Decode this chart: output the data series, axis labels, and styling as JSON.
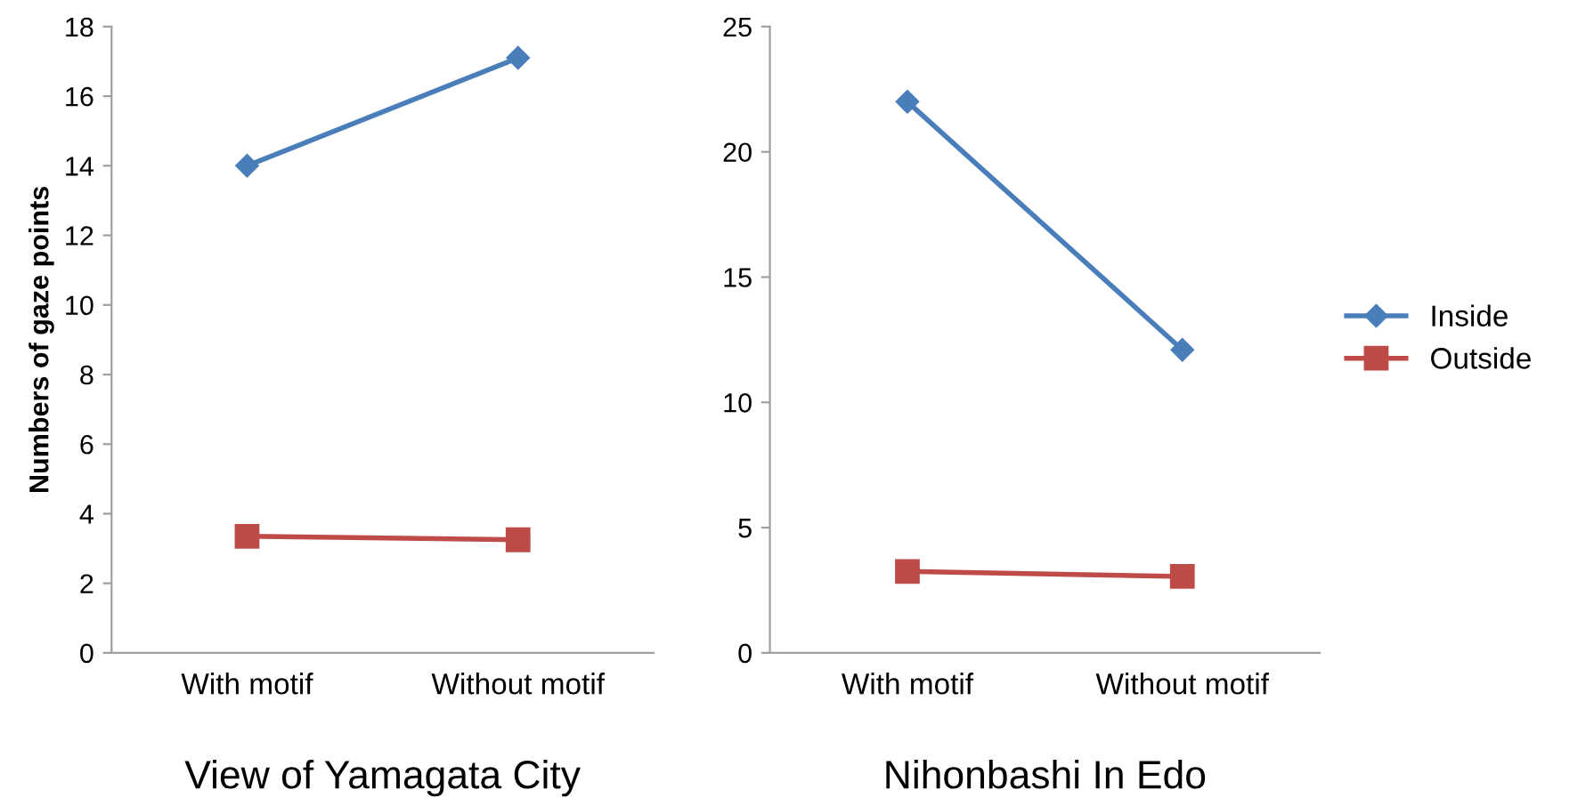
{
  "chart_data": [
    {
      "type": "line",
      "title": "View of Yamagata City",
      "ylabel": "Numbers of gaze points",
      "categories": [
        "With motif",
        "Without motif"
      ],
      "ylim": [
        0,
        18
      ],
      "yticks": [
        0,
        2,
        4,
        6,
        8,
        10,
        12,
        14,
        16,
        18
      ],
      "grid": false,
      "legend": false,
      "series": [
        {
          "color": "#4a7ebb",
          "marker": "diamond",
          "values": [
            14.0,
            17.1
          ]
        },
        {
          "color": "#be4b48",
          "marker": "square",
          "values": [
            3.35,
            3.25
          ]
        }
      ]
    },
    {
      "type": "line",
      "title": "Nihonbashi In Edo",
      "categories": [
        "With motif",
        "Without motif"
      ],
      "ylim": [
        0,
        25
      ],
      "yticks": [
        0,
        5,
        10,
        15,
        20,
        25
      ],
      "grid": false,
      "legend": "right",
      "series": [
        {
          "name": "Inside",
          "color": "#4a7ebb",
          "marker": "diamond",
          "values": [
            22.0,
            12.1
          ]
        },
        {
          "name": "Outside",
          "color": "#be4b48",
          "marker": "square",
          "values": [
            3.25,
            3.05
          ]
        }
      ]
    }
  ]
}
